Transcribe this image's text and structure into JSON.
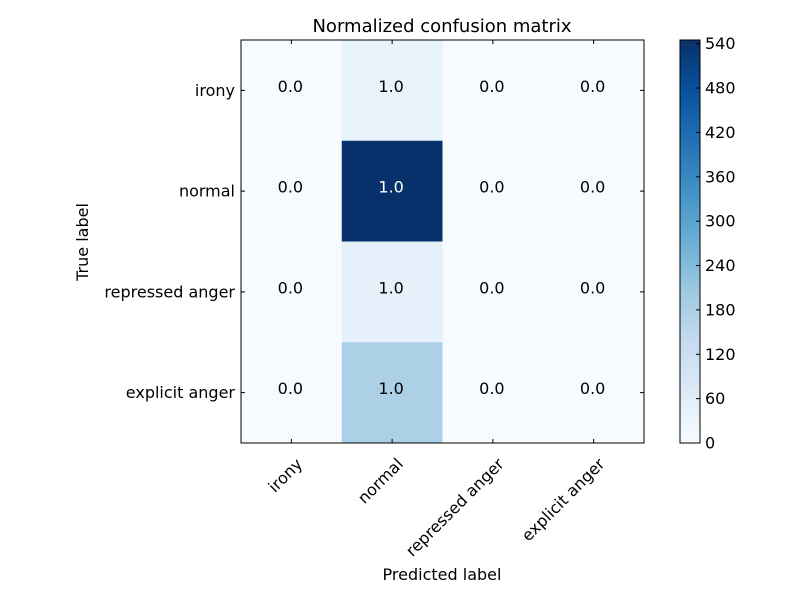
{
  "chart_data": {
    "type": "heatmap",
    "title": "Normalized confusion matrix",
    "xlabel": "Predicted label",
    "ylabel": "True label",
    "x_categories": [
      "irony",
      "normal",
      "repressed anger",
      "explicit anger"
    ],
    "y_categories": [
      "irony",
      "normal",
      "repressed anger",
      "explicit anger"
    ],
    "cell_labels": [
      [
        "0.0",
        "1.0",
        "0.0",
        "0.0"
      ],
      [
        "0.0",
        "1.0",
        "0.0",
        "0.0"
      ],
      [
        "0.0",
        "1.0",
        "0.0",
        "0.0"
      ],
      [
        "0.0",
        "1.0",
        "0.0",
        "0.0"
      ]
    ],
    "counts": [
      [
        0,
        40,
        0,
        0
      ],
      [
        0,
        545,
        0,
        0
      ],
      [
        0,
        45,
        0,
        0
      ],
      [
        0,
        180,
        0,
        0
      ]
    ],
    "colormap": "Blues",
    "colorbar": {
      "vmin": 0,
      "vmax": 545,
      "ticks": [
        0,
        60,
        120,
        180,
        240,
        300,
        360,
        420,
        480,
        540
      ]
    },
    "text_threshold": 272.5,
    "colors": {
      "low": "#f7fbff",
      "high": "#08306b",
      "text_dark": "#000000",
      "text_light": "#ffffff"
    }
  }
}
